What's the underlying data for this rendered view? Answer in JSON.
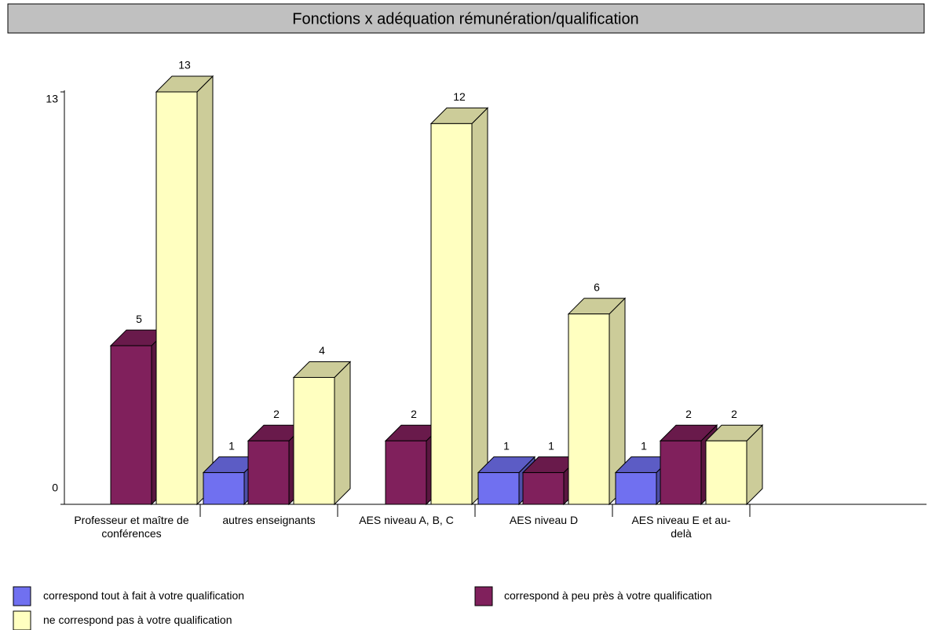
{
  "chart_data": {
    "type": "bar3d",
    "title": "Fonctions x adéquation rémunération/qualification",
    "categories": [
      "Professeur et maître de conférences",
      "autres enseignants",
      "AES niveau A, B, C",
      "AES niveau D",
      "AES niveau E et au-delà"
    ],
    "series": [
      {
        "name": "correspond tout à fait à votre qualification",
        "color": "#7070f0",
        "values": [
          null,
          1,
          null,
          1,
          1
        ]
      },
      {
        "name": "correspond à peu près à votre qualification",
        "color": "#80205c",
        "values": [
          5,
          2,
          2,
          1,
          2
        ]
      },
      {
        "name": "ne correspond pas à votre qualification",
        "color": "#ffffc0",
        "values": [
          13,
          4,
          12,
          6,
          2
        ]
      }
    ],
    "ylim": [
      0,
      13
    ],
    "yticks": [
      0,
      13
    ]
  }
}
